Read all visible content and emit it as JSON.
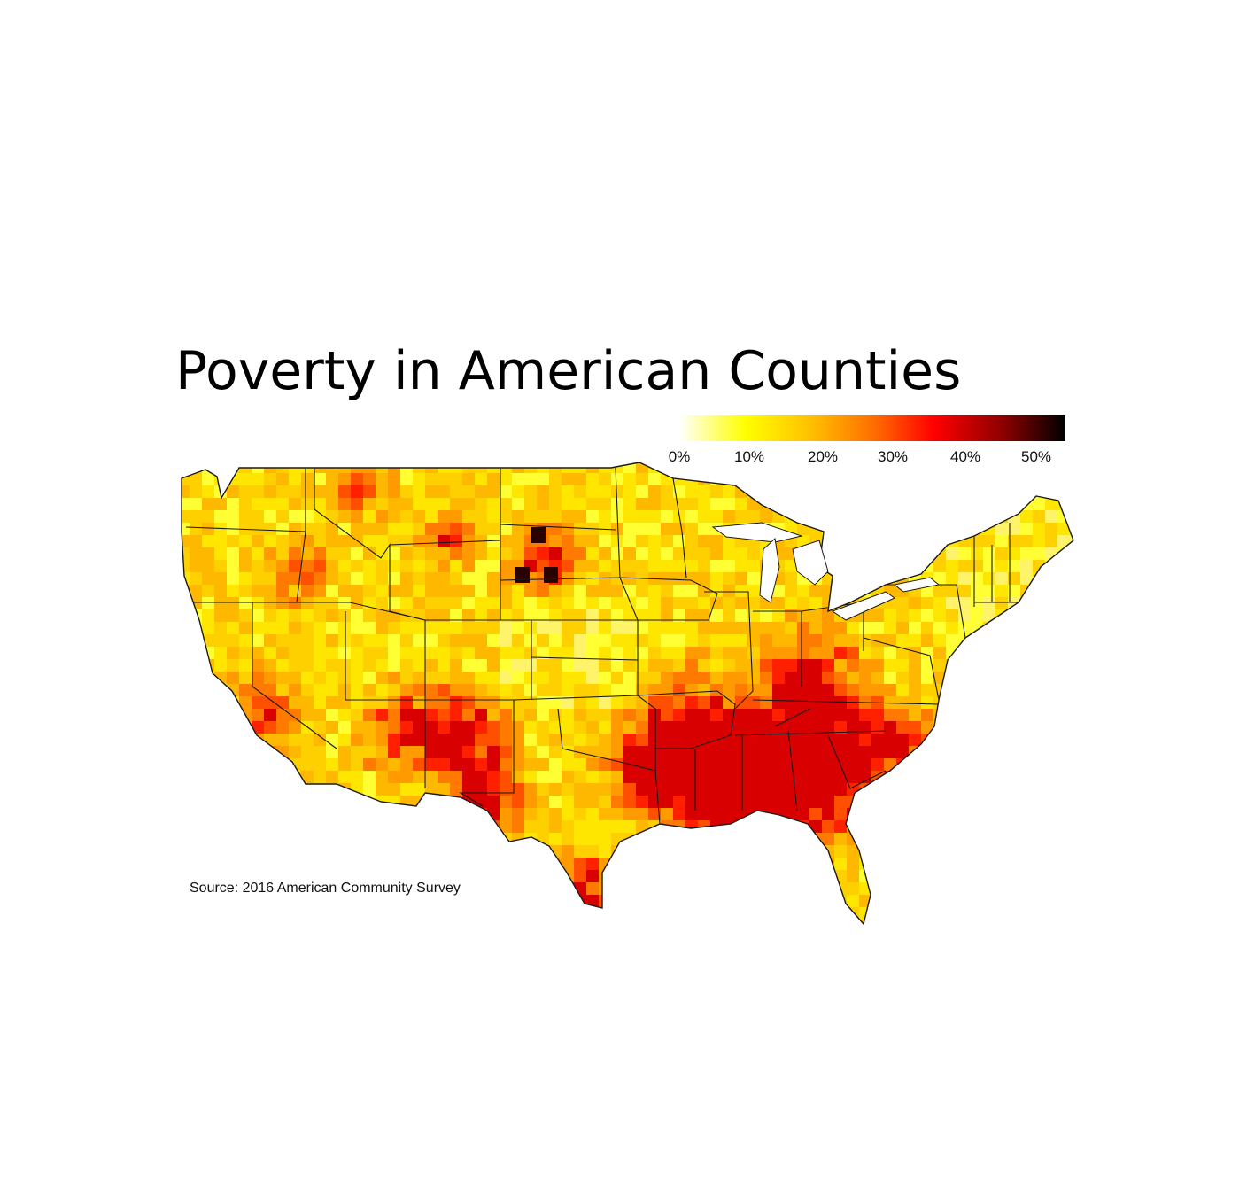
{
  "title": "Poverty in American Counties",
  "source": "Source: 2016 American Community Survey",
  "legend": {
    "ticks": [
      "0%",
      "10%",
      "20%",
      "30%",
      "40%",
      "50%"
    ],
    "range": [
      0,
      53
    ],
    "colors": [
      "#ffffff",
      "#ffff00",
      "#ffc000",
      "#ff6000",
      "#ff0000",
      "#8b0000",
      "#000000"
    ]
  },
  "map": {
    "type": "choropleth",
    "variable": "poverty rate",
    "land_color": "#ffe14a",
    "border_color": "#1a1a1a"
  }
}
